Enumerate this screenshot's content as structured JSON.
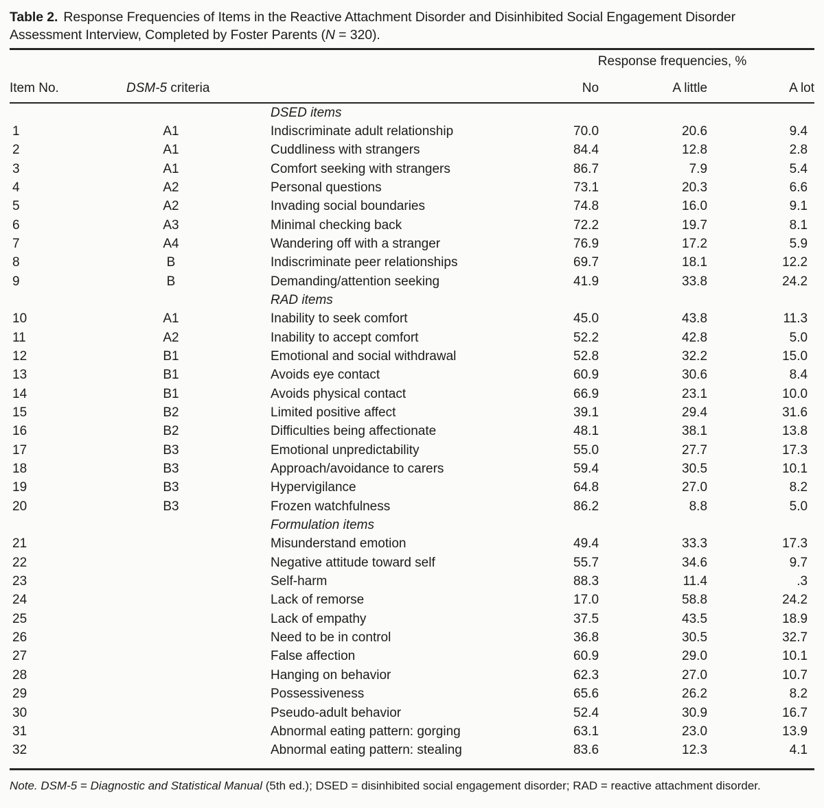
{
  "title": {
    "label": "Table 2.",
    "line1": "Response Frequencies of Items in the Reactive Attachment Disorder and Disinhibited Social Engagement Disorder",
    "line2_pre": "Assessment Interview, Completed by Foster Parents (",
    "line2_n": "N",
    "line2_post": " = 320)."
  },
  "table": {
    "spanner": "Response frequencies, %",
    "col_headers": {
      "item_no": "Item No.",
      "criteria_italic": "DSM-5",
      "criteria_rest": " criteria",
      "no": "No",
      "a_little": "A little",
      "a_lot": "A lot"
    },
    "sections": [
      {
        "header": "DSED items",
        "rows": [
          {
            "no": "1",
            "criteria": "A1",
            "item": "Indiscriminate adult relationship",
            "pct_no": "70.0",
            "pct_little": "20.6",
            "pct_lot": "9.4"
          },
          {
            "no": "2",
            "criteria": "A1",
            "item": "Cuddliness with strangers",
            "pct_no": "84.4",
            "pct_little": "12.8",
            "pct_lot": "2.8"
          },
          {
            "no": "3",
            "criteria": "A1",
            "item": "Comfort seeking with strangers",
            "pct_no": "86.7",
            "pct_little": "7.9",
            "pct_lot": "5.4"
          },
          {
            "no": "4",
            "criteria": "A2",
            "item": "Personal questions",
            "pct_no": "73.1",
            "pct_little": "20.3",
            "pct_lot": "6.6"
          },
          {
            "no": "5",
            "criteria": "A2",
            "item": "Invading social boundaries",
            "pct_no": "74.8",
            "pct_little": "16.0",
            "pct_lot": "9.1"
          },
          {
            "no": "6",
            "criteria": "A3",
            "item": "Minimal checking back",
            "pct_no": "72.2",
            "pct_little": "19.7",
            "pct_lot": "8.1"
          },
          {
            "no": "7",
            "criteria": "A4",
            "item": "Wandering off with a stranger",
            "pct_no": "76.9",
            "pct_little": "17.2",
            "pct_lot": "5.9"
          },
          {
            "no": "8",
            "criteria": "B",
            "item": "Indiscriminate peer relationships",
            "pct_no": "69.7",
            "pct_little": "18.1",
            "pct_lot": "12.2"
          },
          {
            "no": "9",
            "criteria": "B",
            "item": "Demanding/attention seeking",
            "pct_no": "41.9",
            "pct_little": "33.8",
            "pct_lot": "24.2"
          }
        ]
      },
      {
        "header": "RAD items",
        "rows": [
          {
            "no": "10",
            "criteria": "A1",
            "item": "Inability to seek comfort",
            "pct_no": "45.0",
            "pct_little": "43.8",
            "pct_lot": "11.3"
          },
          {
            "no": "11",
            "criteria": "A2",
            "item": "Inability to accept comfort",
            "pct_no": "52.2",
            "pct_little": "42.8",
            "pct_lot": "5.0"
          },
          {
            "no": "12",
            "criteria": "B1",
            "item": "Emotional and social withdrawal",
            "pct_no": "52.8",
            "pct_little": "32.2",
            "pct_lot": "15.0"
          },
          {
            "no": "13",
            "criteria": "B1",
            "item": "Avoids eye contact",
            "pct_no": "60.9",
            "pct_little": "30.6",
            "pct_lot": "8.4"
          },
          {
            "no": "14",
            "criteria": "B1",
            "item": "Avoids physical contact",
            "pct_no": "66.9",
            "pct_little": "23.1",
            "pct_lot": "10.0"
          },
          {
            "no": "15",
            "criteria": "B2",
            "item": "Limited positive affect",
            "pct_no": "39.1",
            "pct_little": "29.4",
            "pct_lot": "31.6"
          },
          {
            "no": "16",
            "criteria": "B2",
            "item": "Difficulties being affectionate",
            "pct_no": "48.1",
            "pct_little": "38.1",
            "pct_lot": "13.8"
          },
          {
            "no": "17",
            "criteria": "B3",
            "item": "Emotional unpredictability",
            "pct_no": "55.0",
            "pct_little": "27.7",
            "pct_lot": "17.3"
          },
          {
            "no": "18",
            "criteria": "B3",
            "item": "Approach/avoidance to carers",
            "pct_no": "59.4",
            "pct_little": "30.5",
            "pct_lot": "10.1"
          },
          {
            "no": "19",
            "criteria": "B3",
            "item": "Hypervigilance",
            "pct_no": "64.8",
            "pct_little": "27.0",
            "pct_lot": "8.2"
          },
          {
            "no": "20",
            "criteria": "B3",
            "item": "Frozen watchfulness",
            "pct_no": "86.2",
            "pct_little": "8.8",
            "pct_lot": "5.0"
          }
        ]
      },
      {
        "header": "Formulation items",
        "rows": [
          {
            "no": "21",
            "criteria": "",
            "item": "Misunderstand emotion",
            "pct_no": "49.4",
            "pct_little": "33.3",
            "pct_lot": "17.3"
          },
          {
            "no": "22",
            "criteria": "",
            "item": "Negative attitude toward self",
            "pct_no": "55.7",
            "pct_little": "34.6",
            "pct_lot": "9.7"
          },
          {
            "no": "23",
            "criteria": "",
            "item": "Self-harm",
            "pct_no": "88.3",
            "pct_little": "11.4",
            "pct_lot": ".3"
          },
          {
            "no": "24",
            "criteria": "",
            "item": "Lack of remorse",
            "pct_no": "17.0",
            "pct_little": "58.8",
            "pct_lot": "24.2"
          },
          {
            "no": "25",
            "criteria": "",
            "item": "Lack of empathy",
            "pct_no": "37.5",
            "pct_little": "43.5",
            "pct_lot": "18.9"
          },
          {
            "no": "26",
            "criteria": "",
            "item": "Need to be in control",
            "pct_no": "36.8",
            "pct_little": "30.5",
            "pct_lot": "32.7"
          },
          {
            "no": "27",
            "criteria": "",
            "item": "False affection",
            "pct_no": "60.9",
            "pct_little": "29.0",
            "pct_lot": "10.1"
          },
          {
            "no": "28",
            "criteria": "",
            "item": "Hanging on behavior",
            "pct_no": "62.3",
            "pct_little": "27.0",
            "pct_lot": "10.7"
          },
          {
            "no": "29",
            "criteria": "",
            "item": "Possessiveness",
            "pct_no": "65.6",
            "pct_little": "26.2",
            "pct_lot": "8.2"
          },
          {
            "no": "30",
            "criteria": "",
            "item": "Pseudo-adult behavior",
            "pct_no": "52.4",
            "pct_little": "30.9",
            "pct_lot": "16.7"
          },
          {
            "no": "31",
            "criteria": "",
            "item": "Abnormal eating pattern: gorging",
            "pct_no": "63.1",
            "pct_little": "23.0",
            "pct_lot": "13.9"
          },
          {
            "no": "32",
            "criteria": "",
            "item": "Abnormal eating pattern: stealing",
            "pct_no": "83.6",
            "pct_little": "12.3",
            "pct_lot": "4.1"
          }
        ]
      }
    ]
  },
  "footnote": {
    "italic1": "Note. DSM-5",
    "mid": " = ",
    "italic2": "Diagnostic and Statistical Manual",
    "rest": " (5th ed.); DSED = disinhibited social engagement disorder; RAD = reactive attachment disorder."
  },
  "colors": {
    "background": "#fbfbfa",
    "text": "#1c1c1c",
    "rule": "#262626"
  }
}
